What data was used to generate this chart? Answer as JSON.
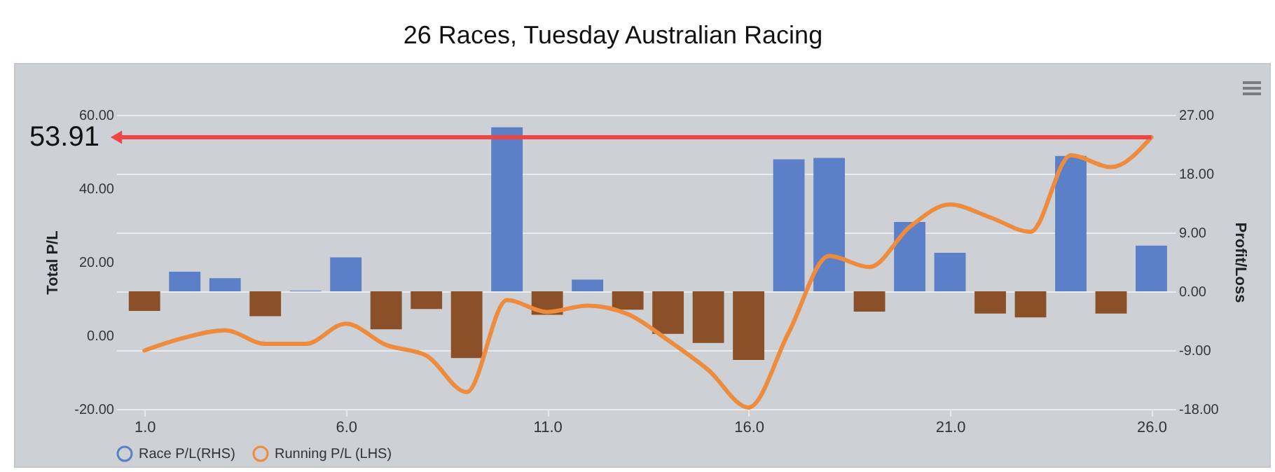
{
  "chart_data": {
    "type": "bar",
    "title": "26 Races, Tuesday Australian Racing",
    "x": [
      1,
      2,
      3,
      4,
      5,
      6,
      7,
      8,
      9,
      10,
      11,
      12,
      13,
      14,
      15,
      16,
      17,
      18,
      19,
      20,
      21,
      22,
      23,
      24,
      25,
      26
    ],
    "xlim": [
      0.3,
      26.6
    ],
    "xticks": [
      {
        "value": 1,
        "label": "1.0"
      },
      {
        "value": 6,
        "label": "6.0"
      },
      {
        "value": 11,
        "label": "11.0"
      },
      {
        "value": 16,
        "label": "16.0"
      },
      {
        "value": 21,
        "label": "21.0"
      },
      {
        "value": 26,
        "label": "26.0"
      }
    ],
    "ylabel": "Total P/L",
    "y2label": "Profit/Loss",
    "ylim": [
      -20,
      60
    ],
    "yticks": [
      {
        "value": -20,
        "label": "-20.00"
      },
      {
        "value": 0,
        "label": "0.00"
      },
      {
        "value": 20,
        "label": "20.00"
      },
      {
        "value": 40,
        "label": "40.00"
      },
      {
        "value": 60,
        "label": "60.00"
      }
    ],
    "y2lim": [
      -18,
      27
    ],
    "y2ticks": [
      {
        "value": -18,
        "label": "-18.00"
      },
      {
        "value": -9,
        "label": "-9.00"
      },
      {
        "value": 0,
        "label": "0.00"
      },
      {
        "value": 9,
        "label": "9.00"
      },
      {
        "value": 18,
        "label": "18.00"
      },
      {
        "value": 27,
        "label": "27.00"
      }
    ],
    "series": [
      {
        "name": "Race P/L(RHS)",
        "axis": "y2",
        "color": "#5b80c8",
        "values": [
          -3.0,
          3.0,
          2.0,
          -3.8,
          0.1,
          5.2,
          -5.8,
          -2.7,
          -10.2,
          25.1,
          -3.6,
          1.8,
          -2.8,
          -6.5,
          -7.9,
          -10.5,
          20.2,
          20.4,
          -3.1,
          10.6,
          5.9,
          -3.4,
          -4.0,
          20.7,
          -3.4,
          7.0
        ],
        "colors": [
          "#8b5028",
          "#5b80c8",
          "#5b80c8",
          "#8b5028",
          "#5b80c8",
          "#5b80c8",
          "#8b5028",
          "#8b5028",
          "#8b5028",
          "#5b80c8",
          "#8b5028",
          "#5b80c8",
          "#8b5028",
          "#8b5028",
          "#8b5028",
          "#8b5028",
          "#5b80c8",
          "#5b80c8",
          "#8b5028",
          "#5b80c8",
          "#5b80c8",
          "#8b5028",
          "#8b5028",
          "#5b80c8",
          "#8b5028",
          "#5b80c8"
        ]
      },
      {
        "name": "Running P/L (LHS)",
        "type": "line",
        "axis": "y",
        "color": "#ee8b3d",
        "values": [
          -4.1,
          -0.6,
          1.4,
          -2.3,
          -2.3,
          3.2,
          -2.6,
          -5.5,
          -15.4,
          9.6,
          6.4,
          8.1,
          5.8,
          -1.3,
          -9.4,
          -19.6,
          0.9,
          21.6,
          18.6,
          29.5,
          35.6,
          32.1,
          28.2,
          49.0,
          45.8,
          53.91
        ]
      }
    ],
    "annotations": [
      {
        "text": "53.91",
        "x": 26,
        "y": 53.91
      }
    ],
    "grid": "y",
    "legend": "bottom"
  }
}
